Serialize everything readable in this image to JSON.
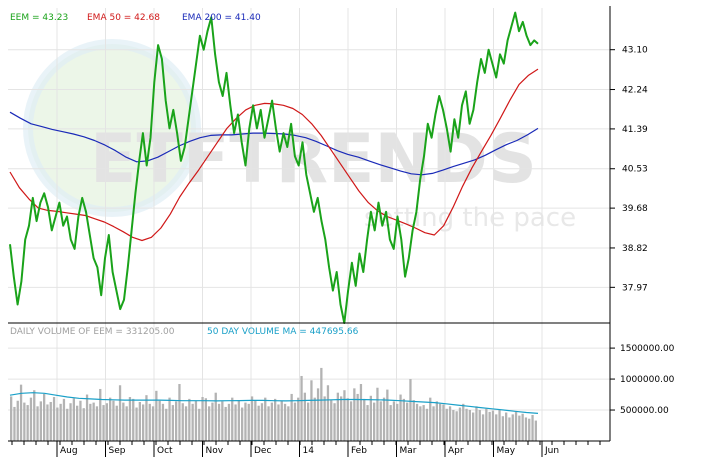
{
  "chart_data": [
    {
      "type": "line",
      "legend": [
        {
          "label": "EEM = 43.23",
          "color": "#1aa31a"
        },
        {
          "label": "EMA 50 = 42.68",
          "color": "#d01818"
        },
        {
          "label": "EMA 200 = 41.40",
          "color": "#1a2ab8"
        }
      ],
      "x_tick_labels": [
        "Aug",
        "Sep",
        "Oct",
        "Nov",
        "Dec",
        "14",
        "Feb",
        "Mar",
        "Apr",
        "May",
        "Jun"
      ],
      "y_tick_labels": [
        "43.10",
        "42.24",
        "41.39",
        "40.53",
        "39.68",
        "38.82",
        "37.97"
      ],
      "ylim": [
        37.2,
        44.0
      ],
      "grid": true,
      "series": [
        {
          "name": "EEM",
          "color": "#1aa31a",
          "values": [
            38.9,
            38.2,
            37.6,
            38.1,
            39.0,
            39.3,
            39.9,
            39.4,
            39.8,
            40.0,
            39.7,
            39.2,
            39.5,
            39.8,
            39.3,
            39.5,
            39.0,
            38.8,
            39.5,
            39.9,
            39.6,
            39.1,
            38.6,
            38.4,
            37.8,
            38.6,
            39.1,
            38.3,
            37.9,
            37.5,
            37.7,
            38.4,
            39.2,
            40.0,
            40.7,
            41.3,
            40.6,
            41.2,
            42.4,
            43.2,
            42.9,
            42.0,
            41.4,
            41.8,
            41.3,
            40.7,
            41.0,
            41.6,
            42.2,
            42.8,
            43.4,
            43.1,
            43.5,
            43.8,
            43.0,
            42.4,
            42.1,
            42.6,
            41.9,
            41.3,
            41.7,
            41.1,
            40.6,
            41.4,
            41.9,
            41.4,
            41.8,
            41.2,
            41.6,
            42.0,
            41.4,
            40.9,
            41.3,
            41.0,
            41.5,
            40.8,
            40.6,
            41.1,
            40.4,
            40.0,
            39.6,
            39.9,
            39.4,
            39.0,
            38.4,
            37.9,
            38.3,
            37.6,
            37.2,
            37.9,
            38.5,
            38.0,
            38.7,
            38.3,
            39.0,
            39.6,
            39.2,
            39.8,
            39.3,
            39.6,
            39.0,
            38.8,
            39.5,
            39.0,
            38.2,
            38.6,
            39.2,
            39.6,
            40.3,
            40.8,
            41.5,
            41.2,
            41.7,
            42.1,
            41.8,
            41.4,
            40.9,
            41.6,
            41.2,
            41.9,
            42.2,
            41.5,
            41.8,
            42.4,
            42.9,
            42.6,
            43.1,
            42.8,
            42.5,
            43.0,
            42.8,
            43.3,
            43.6,
            43.9,
            43.5,
            43.7,
            43.4,
            43.2,
            43.3,
            43.23
          ]
        },
        {
          "name": "EMA 50",
          "color": "#d01818",
          "values": [
            40.46,
            40.12,
            39.88,
            39.68,
            39.63,
            39.61,
            39.58,
            39.55,
            39.52,
            39.45,
            39.38,
            39.28,
            39.17,
            39.05,
            38.98,
            39.05,
            39.25,
            39.55,
            39.92,
            40.22,
            40.5,
            40.8,
            41.1,
            41.4,
            41.62,
            41.8,
            41.9,
            41.94,
            41.93,
            41.9,
            41.83,
            41.7,
            41.5,
            41.25,
            40.95,
            40.65,
            40.35,
            40.05,
            39.8,
            39.62,
            39.5,
            39.42,
            39.34,
            39.25,
            39.15,
            39.1,
            39.3,
            39.7,
            40.15,
            40.55,
            40.9,
            41.25,
            41.62,
            42.0,
            42.35,
            42.55,
            42.68
          ]
        },
        {
          "name": "EMA 200",
          "color": "#1a2ab8",
          "values": [
            41.75,
            41.62,
            41.5,
            41.44,
            41.38,
            41.33,
            41.28,
            41.22,
            41.14,
            41.04,
            40.92,
            40.78,
            40.68,
            40.7,
            40.78,
            40.9,
            41.02,
            41.12,
            41.2,
            41.25,
            41.26,
            41.26,
            41.28,
            41.3,
            41.3,
            41.29,
            41.28,
            41.25,
            41.2,
            41.12,
            41.02,
            40.92,
            40.84,
            40.78,
            40.7,
            40.62,
            40.55,
            40.48,
            40.42,
            40.4,
            40.43,
            40.5,
            40.58,
            40.65,
            40.72,
            40.82,
            40.94,
            41.05,
            41.14,
            41.26,
            41.4
          ]
        }
      ]
    },
    {
      "type": "bar",
      "title_label": "DAILY VOLUME OF EEM = 331205.00",
      "ma_label": "50 DAY VOLUME MA = 447695.66",
      "ma_color": "#1aa0c8",
      "y_tick_labels": [
        "1500000.00",
        "1000000.00",
        "500000.00"
      ],
      "ylim": [
        0,
        1550000
      ],
      "values": [
        720000,
        550000,
        650000,
        910000,
        620000,
        580000,
        700000,
        820000,
        560000,
        640000,
        760000,
        590000,
        630000,
        710000,
        540000,
        600000,
        680000,
        520000,
        610000,
        690000,
        570000,
        650000,
        530000,
        750000,
        600000,
        620000,
        560000,
        840000,
        580000,
        610000,
        700000,
        650000,
        570000,
        900000,
        620000,
        560000,
        710000,
        680000,
        540000,
        630000,
        590000,
        740000,
        600000,
        560000,
        810000,
        650000,
        600000,
        520000,
        700000,
        580000,
        640000,
        920000,
        610000,
        560000,
        680000,
        600000,
        650000,
        520000,
        710000,
        690000,
        560000,
        620000,
        780000,
        600000,
        640000,
        550000,
        600000,
        700000,
        590000,
        660000,
        540000,
        620000,
        600000,
        720000,
        650000,
        570000,
        610000,
        700000,
        560000,
        620000,
        680000,
        590000,
        650000,
        600000,
        560000,
        760000,
        620000,
        700000,
        1050000,
        780000,
        620000,
        980000,
        700000,
        850000,
        1180000,
        720000,
        900000,
        660000,
        610000,
        780000,
        720000,
        820000,
        690000,
        640000,
        850000,
        760000,
        920000,
        680000,
        580000,
        730000,
        620000,
        860000,
        640000,
        700000,
        830000,
        580000,
        640000,
        600000,
        750000,
        680000,
        620000,
        1000000,
        660000,
        600000,
        560000,
        580000,
        520000,
        700000,
        560000,
        640000,
        600000,
        590000,
        520000,
        560000,
        500000,
        480000,
        540000,
        600000,
        520000,
        500000,
        460000,
        560000,
        500000,
        430000,
        520000,
        470000,
        490000,
        430000,
        500000,
        400000,
        460000,
        380000,
        430000,
        470000,
        410000,
        440000,
        380000,
        360000,
        420000,
        330000
      ],
      "ma_values": [
        740000,
        770000,
        780000,
        770000,
        740000,
        710000,
        690000,
        680000,
        670000,
        665000,
        660000,
        660000,
        660000,
        660000,
        655000,
        650000,
        650000,
        650000,
        648000,
        650000,
        652000,
        655000,
        655000,
        650000,
        648000,
        650000,
        655000,
        660000,
        665000,
        670000,
        670000,
        668000,
        665000,
        660000,
        650000,
        640000,
        630000,
        620000,
        600000,
        580000,
        560000,
        540000,
        520000,
        500000,
        480000,
        460000,
        445000
      ]
    }
  ],
  "watermark": {
    "brand": "ETFTRENDS",
    "tagline": "setting the pace"
  }
}
